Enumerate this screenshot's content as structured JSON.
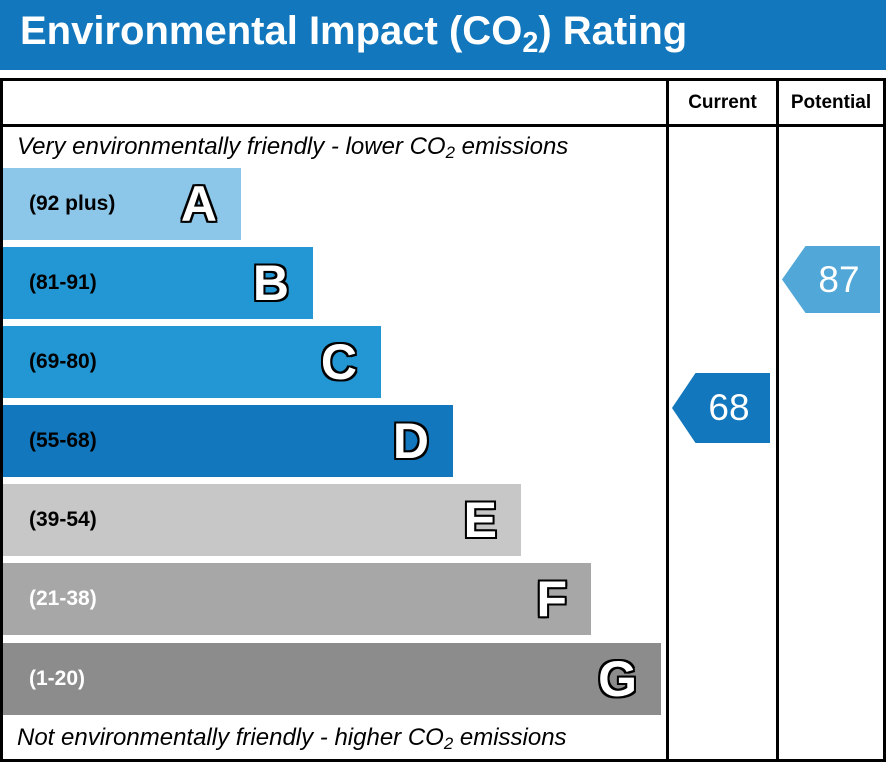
{
  "header": {
    "title_pre": "Environmental Impact (CO",
    "title_sub": "2",
    "title_post": ") Rating",
    "bg_color": "#1277bd"
  },
  "table": {
    "col_current": "Current",
    "col_potential": "Potential",
    "top_caption_pre": "Very environmentally friendly - lower CO",
    "top_caption_sub": "2",
    "top_caption_post": " emissions",
    "bottom_caption_pre": "Not environmentally friendly - higher CO",
    "bottom_caption_sub": "2",
    "bottom_caption_post": " emissions"
  },
  "bands": [
    {
      "letter": "A",
      "range": "(92 plus)",
      "color": "#8cc6e8",
      "label_color": "#000000"
    },
    {
      "letter": "B",
      "range": "(81-91)",
      "color": "#2397d3",
      "label_color": "#000000"
    },
    {
      "letter": "C",
      "range": "(69-80)",
      "color": "#2397d3",
      "label_color": "#000000"
    },
    {
      "letter": "D",
      "range": "(55-68)",
      "color": "#1277bd",
      "label_color": "#000000"
    },
    {
      "letter": "E",
      "range": "(39-54)",
      "color": "#c7c7c7",
      "label_color": "#000000"
    },
    {
      "letter": "F",
      "range": "(21-38)",
      "color": "#a7a7a7",
      "label_color": "#ffffff"
    },
    {
      "letter": "G",
      "range": "(1-20)",
      "color": "#8c8c8c",
      "label_color": "#ffffff"
    }
  ],
  "current": {
    "value": "68",
    "band": "D",
    "color": "#1277bd"
  },
  "potential": {
    "value": "87",
    "band": "B",
    "color": "#51a8d8"
  },
  "chart_data": {
    "type": "bar",
    "title": "Environmental Impact (CO2) Rating",
    "orientation": "horizontal",
    "categories": [
      "A",
      "B",
      "C",
      "D",
      "E",
      "F",
      "G"
    ],
    "band_ranges": [
      "92 plus",
      "81-91",
      "69-80",
      "55-68",
      "39-54",
      "21-38",
      "1-20"
    ],
    "band_colors": [
      "#8cc6e8",
      "#2397d3",
      "#2397d3",
      "#1277bd",
      "#c7c7c7",
      "#a7a7a7",
      "#8c8c8c"
    ],
    "bar_relative_widths": [
      238,
      310,
      378,
      450,
      518,
      588,
      658
    ],
    "series": [
      {
        "name": "Current",
        "value": 68,
        "band": "D",
        "color": "#1277bd"
      },
      {
        "name": "Potential",
        "value": 87,
        "band": "B",
        "color": "#51a8d8"
      }
    ],
    "annotations": [
      "Very environmentally friendly - lower CO2 emissions",
      "Not environmentally friendly - higher CO2 emissions"
    ],
    "value_range": [
      1,
      100
    ],
    "legend_position": "none",
    "grid": false
  }
}
